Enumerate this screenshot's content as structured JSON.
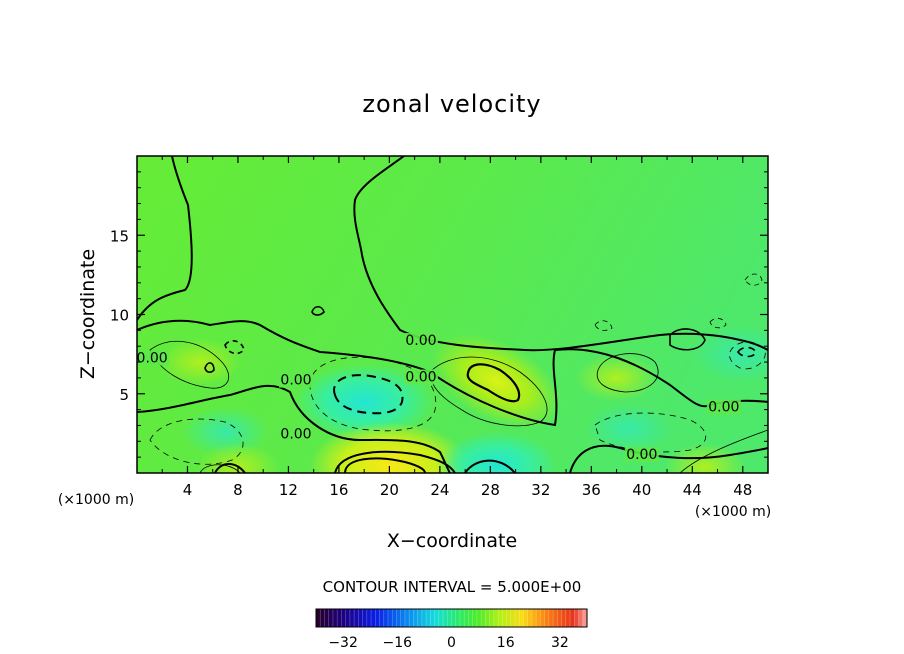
{
  "chart_data": {
    "type": "heatmap",
    "title": "zonal velocity",
    "xlabel": "X−coordinate",
    "ylabel": "Z−coordinate",
    "x_unit": "(×1000 m)",
    "z_unit": "(×1000 m)",
    "xlim": [
      0,
      50
    ],
    "ylim": [
      0,
      20
    ],
    "x_ticks": [
      4,
      8,
      12,
      16,
      20,
      24,
      28,
      32,
      36,
      40,
      44,
      48
    ],
    "x_tick_labels": [
      "4",
      "8",
      "12",
      "16",
      "20",
      "24",
      "28",
      "32",
      "36",
      "40",
      "44",
      "48"
    ],
    "y_ticks": [
      5,
      10,
      15
    ],
    "y_tick_labels": [
      "5",
      "10",
      "15"
    ],
    "contour_interval_text": "CONTOUR INTERVAL = 5.000E+00",
    "contour_interval": 5.0,
    "colorbar": {
      "range": [
        -40,
        40
      ],
      "ticks": [
        -32,
        -16,
        0,
        16,
        32
      ],
      "tick_labels": [
        "−32",
        "−16",
        "0",
        "16",
        "32"
      ]
    },
    "contour_labels": [
      {
        "text": "0.00",
        "x": 1.2,
        "z": 7.1
      },
      {
        "text": "0.00",
        "x": 12.6,
        "z": 5.7
      },
      {
        "text": "0.00",
        "x": 12.6,
        "z": 2.3
      },
      {
        "text": "0.00",
        "x": 22.5,
        "z": 8.2
      },
      {
        "text": "0.00",
        "x": 22.5,
        "z": 5.9
      },
      {
        "text": "0.00",
        "x": 46.5,
        "z": 4.0
      },
      {
        "text": "0.00",
        "x": 40.0,
        "z": 1.0
      }
    ],
    "features": [
      {
        "label": "negative core",
        "x": 18.0,
        "z": 4.5,
        "value": -15
      },
      {
        "label": "positive core",
        "x": 28.5,
        "z": 5.8,
        "value": 15
      },
      {
        "label": "positive surface jet",
        "x": 20.0,
        "z": 0.5,
        "value": 18
      },
      {
        "label": "negative surface",
        "x": 28.5,
        "z": 0.5,
        "value": -12
      },
      {
        "label": "negative lobe",
        "x": 7.0,
        "z": 2.6,
        "value": -7
      },
      {
        "label": "negative lobe",
        "x": 39.0,
        "z": 2.8,
        "value": -7
      },
      {
        "label": "negative lobe",
        "x": 48.0,
        "z": 7.5,
        "value": -9
      },
      {
        "label": "positive lobe",
        "x": 38.0,
        "z": 6.0,
        "value": 6
      },
      {
        "label": "positive lobe",
        "x": 5.0,
        "z": 7.0,
        "value": 6
      },
      {
        "label": "positive lobe",
        "x": 8.0,
        "z": 0.4,
        "value": 6
      },
      {
        "label": "positive surface",
        "x": 45.0,
        "z": 0.4,
        "value": 6
      }
    ]
  }
}
